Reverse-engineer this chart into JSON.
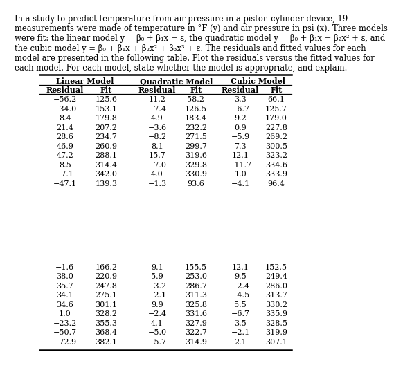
{
  "para_lines": [
    "In a study to predict temperature from air pressure in a piston-cylinder device, 19",
    "measurements were made of temperature in °F (y) and air pressure in psi (x). Three models",
    "were fit: the linear model y = β₀ + β₁x + ε, the quadratic model y = β₀ + β₁x + β₂x² + ε, and",
    "the cubic model y = β₀ + β₁x + β₂x² + β₃x³ + ε. The residuals and fitted values for each",
    "model are presented in the following table. Plot the residuals versus the fitted values for",
    "each model. For each model, state whether the model is appropriate, and explain."
  ],
  "group_headers": [
    "Linear Model",
    "Quadratic Model",
    "Cubic Model"
  ],
  "col_headers": [
    "Residual",
    "Fit",
    "Residual",
    "Fit",
    "Residual",
    "Fit"
  ],
  "data_rows_g1": [
    [
      -56.2,
      125.6,
      11.2,
      58.2,
      3.3,
      66.1
    ],
    [
      -34.0,
      153.1,
      -7.4,
      126.5,
      -6.7,
      125.7
    ],
    [
      8.4,
      179.8,
      4.9,
      183.4,
      9.2,
      179.0
    ],
    [
      21.4,
      207.2,
      -3.6,
      232.2,
      0.9,
      227.8
    ],
    [
      28.6,
      234.7,
      -8.2,
      271.5,
      -5.9,
      269.2
    ],
    [
      46.9,
      260.9,
      8.1,
      299.7,
      7.3,
      300.5
    ],
    [
      47.2,
      288.1,
      15.7,
      319.6,
      12.1,
      323.2
    ],
    [
      8.5,
      314.4,
      -7.0,
      329.8,
      -11.7,
      334.6
    ],
    [
      -7.1,
      342.0,
      4.0,
      330.9,
      1.0,
      333.9
    ],
    [
      -47.1,
      139.3,
      -1.3,
      93.6,
      -4.1,
      96.4
    ]
  ],
  "data_rows_g2": [
    [
      -1.6,
      166.2,
      9.1,
      155.5,
      12.1,
      152.5
    ],
    [
      38.0,
      220.9,
      5.9,
      253.0,
      9.5,
      249.4
    ],
    [
      35.7,
      247.8,
      -3.2,
      286.7,
      -2.4,
      286.0
    ],
    [
      34.1,
      275.1,
      -2.1,
      311.3,
      -4.5,
      313.7
    ],
    [
      34.6,
      301.1,
      9.9,
      325.8,
      5.5,
      330.2
    ],
    [
      1.0,
      328.2,
      -2.4,
      331.6,
      -6.7,
      335.9
    ],
    [
      -23.2,
      355.3,
      4.1,
      327.9,
      3.5,
      328.5
    ],
    [
      -50.7,
      368.4,
      -5.0,
      322.7,
      -2.1,
      319.9
    ],
    [
      -72.9,
      382.1,
      -5.7,
      314.9,
      2.1,
      307.1
    ]
  ],
  "bg_color": "#ffffff",
  "text_color": "#000000",
  "font_size": 8.0,
  "header_font_size": 8.0,
  "para_font_size": 8.3
}
